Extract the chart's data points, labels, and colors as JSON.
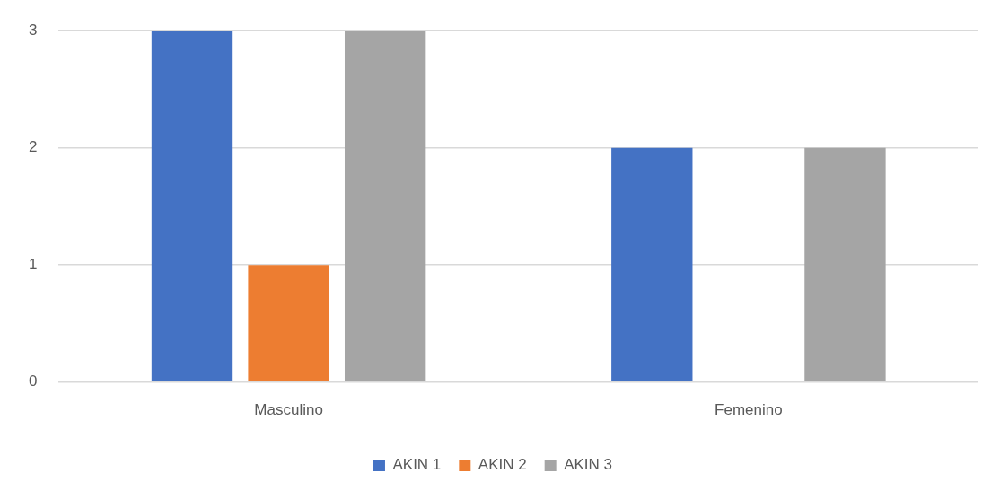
{
  "chart_data": {
    "type": "bar",
    "categories": [
      "Masculino",
      "Femenino"
    ],
    "series": [
      {
        "name": "AKIN 1",
        "color": "#4472c4",
        "values": [
          3,
          2
        ]
      },
      {
        "name": "AKIN 2",
        "color": "#ed7d31",
        "values": [
          1,
          0
        ]
      },
      {
        "name": "AKIN 3",
        "color": "#a5a5a5",
        "values": [
          3,
          2
        ]
      }
    ],
    "ylim": [
      0,
      3
    ],
    "yticks": [
      0,
      1,
      2,
      3
    ],
    "grid": "y",
    "legend": "bottom"
  }
}
